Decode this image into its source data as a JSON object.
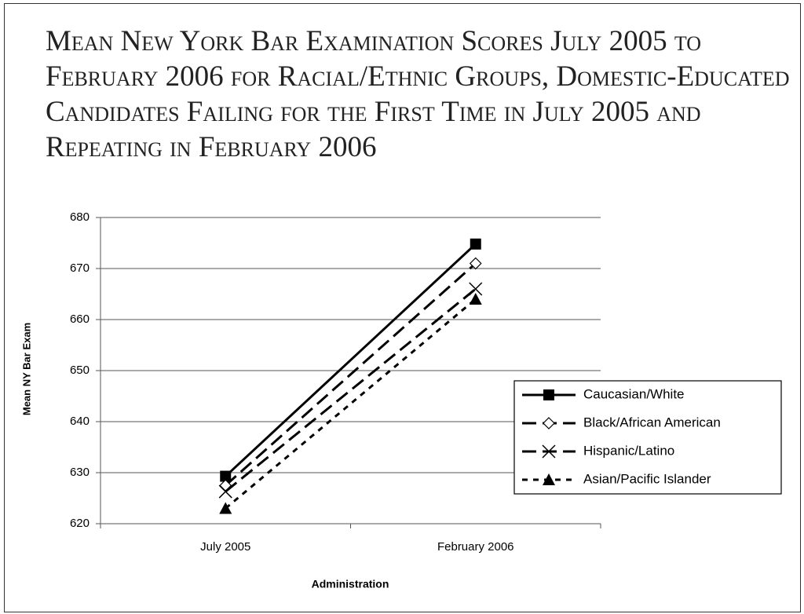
{
  "chart_data": {
    "type": "line",
    "title": "Mean New York Bar Examination Scores July 2005 to February 2006 for Racial/Ethnic Groups, Domestic-Educated Candidates Failing for the First Time in July 2005 and Repeating in February 2006",
    "x_label": "Administration",
    "y_label": "Mean NY Bar Exam",
    "categories": [
      "July 2005",
      "February 2006"
    ],
    "ylim": [
      620,
      680
    ],
    "yticks": [
      620,
      630,
      640,
      650,
      660,
      670,
      680
    ],
    "grid": true,
    "series": [
      {
        "name": "Caucasian/White",
        "color": "#000000",
        "dash": "solid",
        "marker": "square",
        "values": [
          629.3,
          674.8
        ]
      },
      {
        "name": "Black/African American",
        "color": "#000000",
        "dash": "long",
        "marker": "diamond",
        "values": [
          627.5,
          671
        ]
      },
      {
        "name": "Hispanic/Latino",
        "color": "#000000",
        "dash": "long",
        "marker": "x",
        "values": [
          626.3,
          666
        ]
      },
      {
        "name": "Asian/Pacific Islander",
        "color": "#000000",
        "dash": "short",
        "marker": "triangle",
        "values": [
          623,
          664
        ]
      }
    ]
  }
}
